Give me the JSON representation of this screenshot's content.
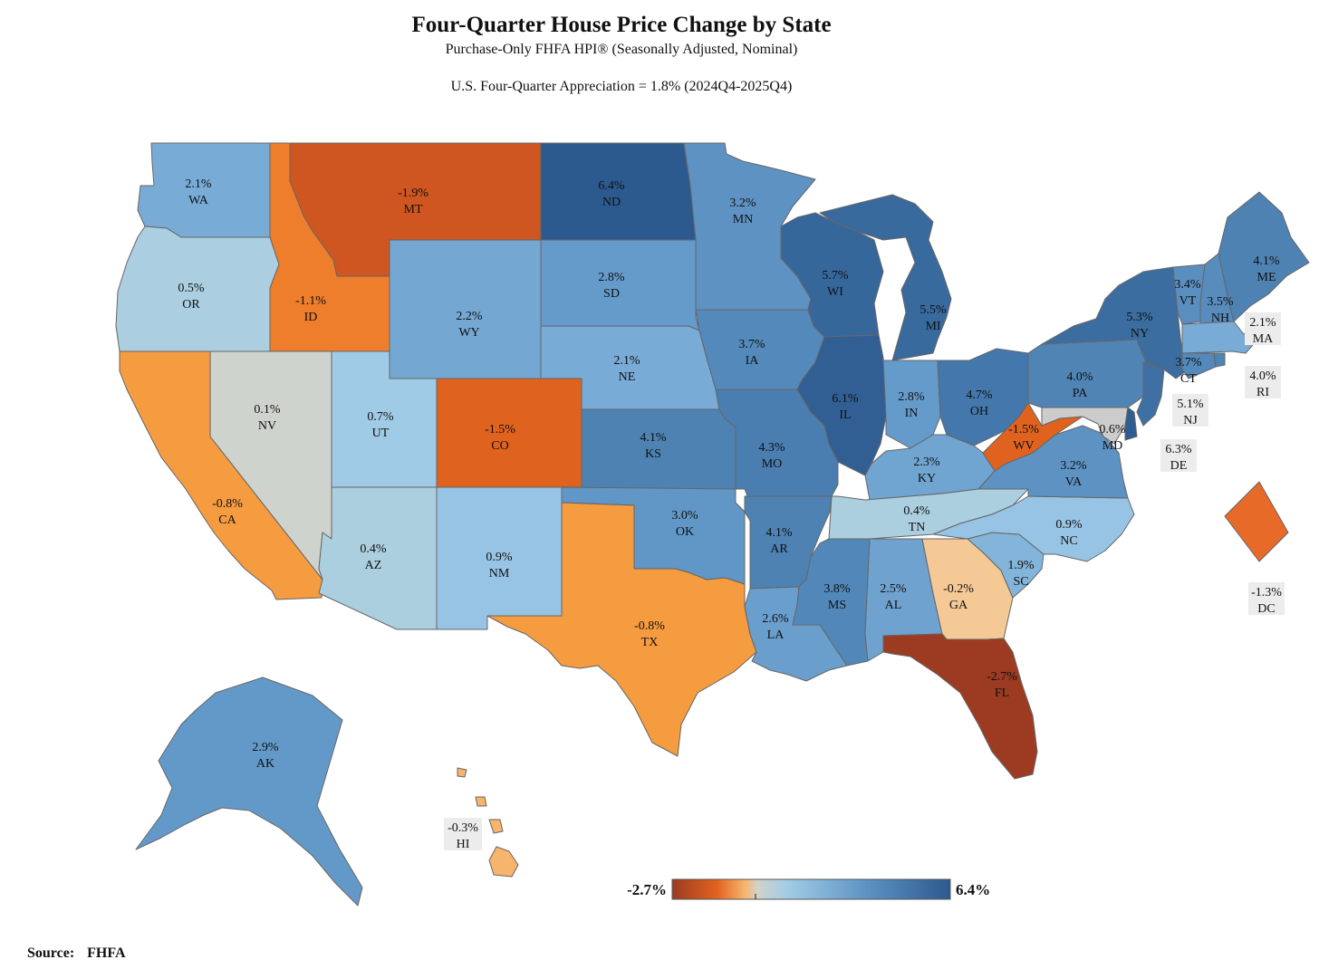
{
  "title": "Four-Quarter House Price Change by State",
  "subtitle": "Purchase-Only FHFA HPI® (Seasonally Adjusted, Nominal)",
  "us_appreciation": "U.S. Four-Quarter Appreciation = 1.8% (2024Q4-2025Q4)",
  "legend": {
    "min_label": "-2.7%",
    "max_label": "6.4%",
    "min": -2.7,
    "max": 6.4
  },
  "source": {
    "label": "Source:",
    "value": "FHFA"
  },
  "colors": {
    "-2.7": "#9c3b22",
    "-1.9": "#cf5620",
    "-1.5": "#e0621f",
    "-1.3": "#e86a28",
    "-1.1": "#ee7d2c",
    "-0.8": "#f59b40",
    "-0.3": "#f7b46c",
    "-0.2": "#f5c995",
    "0.1": "#cfd3cd",
    "0.4": "#abcfdf",
    "0.5": "#abcfe1",
    "0.7": "#9fcbe6",
    "0.9": "#97c4e4",
    "1.9": "#83b4da",
    "2.1": "#78abd6",
    "2.2": "#74a8d3",
    "2.3": "#70a5d1",
    "2.5": "#6fa2cf",
    "2.6": "#6a9ecd",
    "2.8": "#659bca",
    "2.9": "#6399c8",
    "3.0": "#6197c6",
    "3.2": "#5d92c3",
    "3.4": "#598ebf",
    "3.5": "#578cbd",
    "3.7": "#5389bb",
    "3.8": "#5188b9",
    "4.0": "#4f84b5",
    "4.1": "#4d82b3",
    "4.3": "#4a7eb0",
    "4.7": "#4477ab",
    "5.1": "#3e70a4",
    "5.3": "#3b6da1",
    "5.5": "#386a9e",
    "5.7": "#36679b",
    "6.1": "#315f94",
    "6.3": "#2f5c91",
    "6.4": "#2c5a8e"
  },
  "states": [
    {
      "abbr": "WA",
      "value": "2.1%"
    },
    {
      "abbr": "OR",
      "value": "0.5%"
    },
    {
      "abbr": "CA",
      "value": "-0.8%"
    },
    {
      "abbr": "NV",
      "value": "0.1%"
    },
    {
      "abbr": "ID",
      "value": "-1.1%"
    },
    {
      "abbr": "MT",
      "value": "-1.9%"
    },
    {
      "abbr": "WY",
      "value": "2.2%"
    },
    {
      "abbr": "UT",
      "value": "0.7%"
    },
    {
      "abbr": "AZ",
      "value": "0.4%"
    },
    {
      "abbr": "CO",
      "value": "-1.5%"
    },
    {
      "abbr": "NM",
      "value": "0.9%"
    },
    {
      "abbr": "ND",
      "value": "6.4%"
    },
    {
      "abbr": "SD",
      "value": "2.8%"
    },
    {
      "abbr": "NE",
      "value": "2.1%"
    },
    {
      "abbr": "KS",
      "value": "4.1%"
    },
    {
      "abbr": "OK",
      "value": "3.0%"
    },
    {
      "abbr": "TX",
      "value": "-0.8%"
    },
    {
      "abbr": "MN",
      "value": "3.2%"
    },
    {
      "abbr": "IA",
      "value": "3.7%"
    },
    {
      "abbr": "MO",
      "value": "4.3%"
    },
    {
      "abbr": "AR",
      "value": "4.1%"
    },
    {
      "abbr": "LA",
      "value": "2.6%"
    },
    {
      "abbr": "WI",
      "value": "5.7%"
    },
    {
      "abbr": "IL",
      "value": "6.1%"
    },
    {
      "abbr": "MI",
      "value": "5.5%"
    },
    {
      "abbr": "IN",
      "value": "2.8%"
    },
    {
      "abbr": "OH",
      "value": "4.7%"
    },
    {
      "abbr": "KY",
      "value": "2.3%"
    },
    {
      "abbr": "TN",
      "value": "0.4%"
    },
    {
      "abbr": "MS",
      "value": "3.8%"
    },
    {
      "abbr": "AL",
      "value": "2.5%"
    },
    {
      "abbr": "GA",
      "value": "-0.2%"
    },
    {
      "abbr": "FL",
      "value": "-2.7%"
    },
    {
      "abbr": "SC",
      "value": "1.9%"
    },
    {
      "abbr": "NC",
      "value": "0.9%"
    },
    {
      "abbr": "VA",
      "value": "3.2%"
    },
    {
      "abbr": "WV",
      "value": "-1.5%"
    },
    {
      "abbr": "PA",
      "value": "4.0%"
    },
    {
      "abbr": "NY",
      "value": "5.3%"
    },
    {
      "abbr": "VT",
      "value": "3.4%"
    },
    {
      "abbr": "NH",
      "value": "3.5%"
    },
    {
      "abbr": "ME",
      "value": "4.1%"
    },
    {
      "abbr": "MA",
      "value": "2.1%"
    },
    {
      "abbr": "RI",
      "value": "4.0%"
    },
    {
      "abbr": "CT",
      "value": "3.7%"
    },
    {
      "abbr": "NJ",
      "value": "5.1%"
    },
    {
      "abbr": "DE",
      "value": "6.3%"
    },
    {
      "abbr": "MD",
      "value": "0.6%"
    },
    {
      "abbr": "DC",
      "value": "-1.3%"
    },
    {
      "abbr": "AK",
      "value": "2.9%"
    },
    {
      "abbr": "HI",
      "value": "-0.3%"
    }
  ]
}
